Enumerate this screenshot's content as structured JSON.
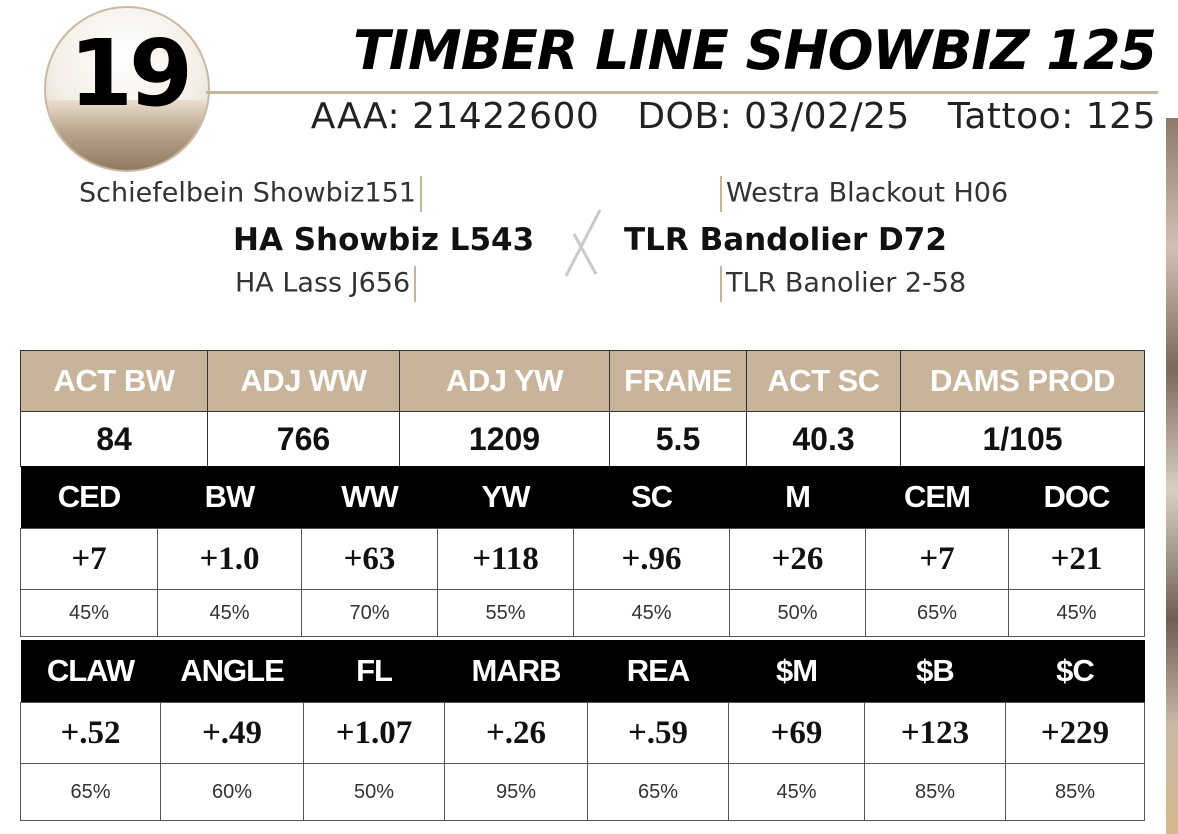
{
  "lot_number": "19",
  "animal_name": "TIMBER LINE SHOWBIZ 125",
  "ids": {
    "aaa": "AAA: 21422600",
    "dob": "DOB: 03/02/25",
    "tattoo": "Tattoo: 125"
  },
  "pedigree": {
    "sire_sire": "Schiefelbein Showbiz151",
    "sire": "HA Showbiz L543",
    "sire_dam": "HA Lass J656",
    "dam_sire": "Westra Blackout H06",
    "dam": "TLR Bandolier D72",
    "dam_dam": "TLR Banolier 2-58"
  },
  "performance": {
    "headers": [
      "ACT BW",
      "ADJ WW",
      "ADJ YW",
      "FRAME",
      "ACT SC",
      "DAMS PROD"
    ],
    "values": [
      "84",
      "766",
      "1209",
      "5.5",
      "40.3",
      "1/105"
    ]
  },
  "epd_row1": {
    "headers": [
      "CED",
      "BW",
      "WW",
      "YW",
      "SC",
      "M",
      "CEM",
      "DOC"
    ],
    "values": [
      "+7",
      "+1.0",
      "+63",
      "+118",
      "+.96",
      "+26",
      "+7",
      "+21"
    ],
    "accuracy": [
      "45%",
      "45%",
      "70%",
      "55%",
      "45%",
      "50%",
      "65%",
      "45%"
    ]
  },
  "epd_row2": {
    "headers": [
      "CLAW",
      "ANGLE",
      "FL",
      "MARB",
      "REA",
      "$M",
      "$B",
      "$C"
    ],
    "values": [
      "+.52",
      "+.49",
      "+1.07",
      "+.26",
      "+.59",
      "+69",
      "+123",
      "+229"
    ],
    "accuracy": [
      "65%",
      "60%",
      "50%",
      "95%",
      "65%",
      "45%",
      "85%",
      "85%"
    ]
  },
  "colors": {
    "tan": "#c8b49b",
    "black": "#000000"
  }
}
